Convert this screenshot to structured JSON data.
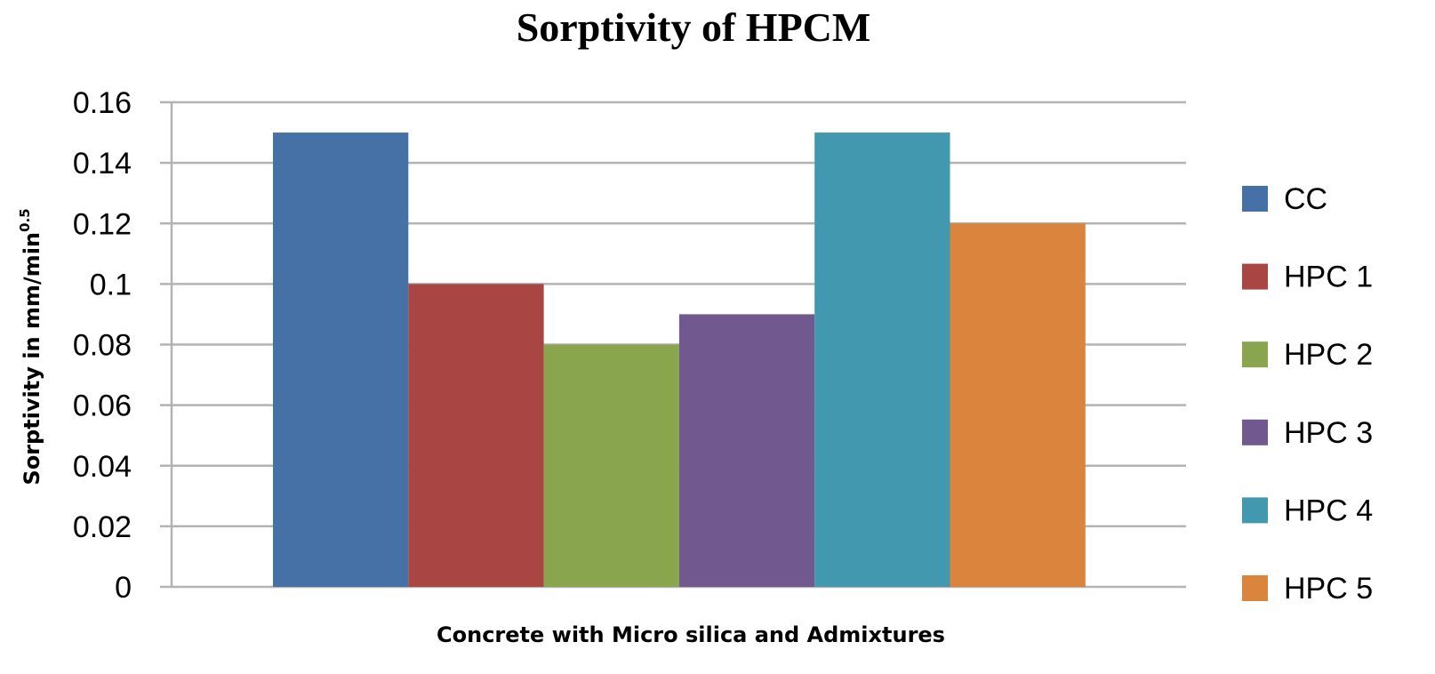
{
  "chart_data": {
    "type": "bar",
    "title": "Sorptivity of HPCM",
    "xlabel": "Concrete with Micro silica and Admixtures",
    "ylabel": "Sorptivity in mm/min",
    "ylabel_superscript": "0.5",
    "ylim": [
      0,
      0.16
    ],
    "yticks": [
      "0",
      "0.02",
      "0.04",
      "0.06",
      "0.08",
      "0.1",
      "0.12",
      "0.14",
      "0.16"
    ],
    "grid": true,
    "legend_position": "right",
    "series": [
      {
        "name": "CC",
        "values": [
          0.15
        ],
        "color": "#4671A7"
      },
      {
        "name": "HPC 1",
        "values": [
          0.1
        ],
        "color": "#A94543"
      },
      {
        "name": "HPC 2",
        "values": [
          0.08
        ],
        "color": "#89A54E"
      },
      {
        "name": "HPC 3",
        "values": [
          0.09
        ],
        "color": "#71588F"
      },
      {
        "name": "HPC 4",
        "values": [
          0.15
        ],
        "color": "#4198AF"
      },
      {
        "name": "HPC 5",
        "values": [
          0.12
        ],
        "color": "#DB843D"
      }
    ]
  }
}
